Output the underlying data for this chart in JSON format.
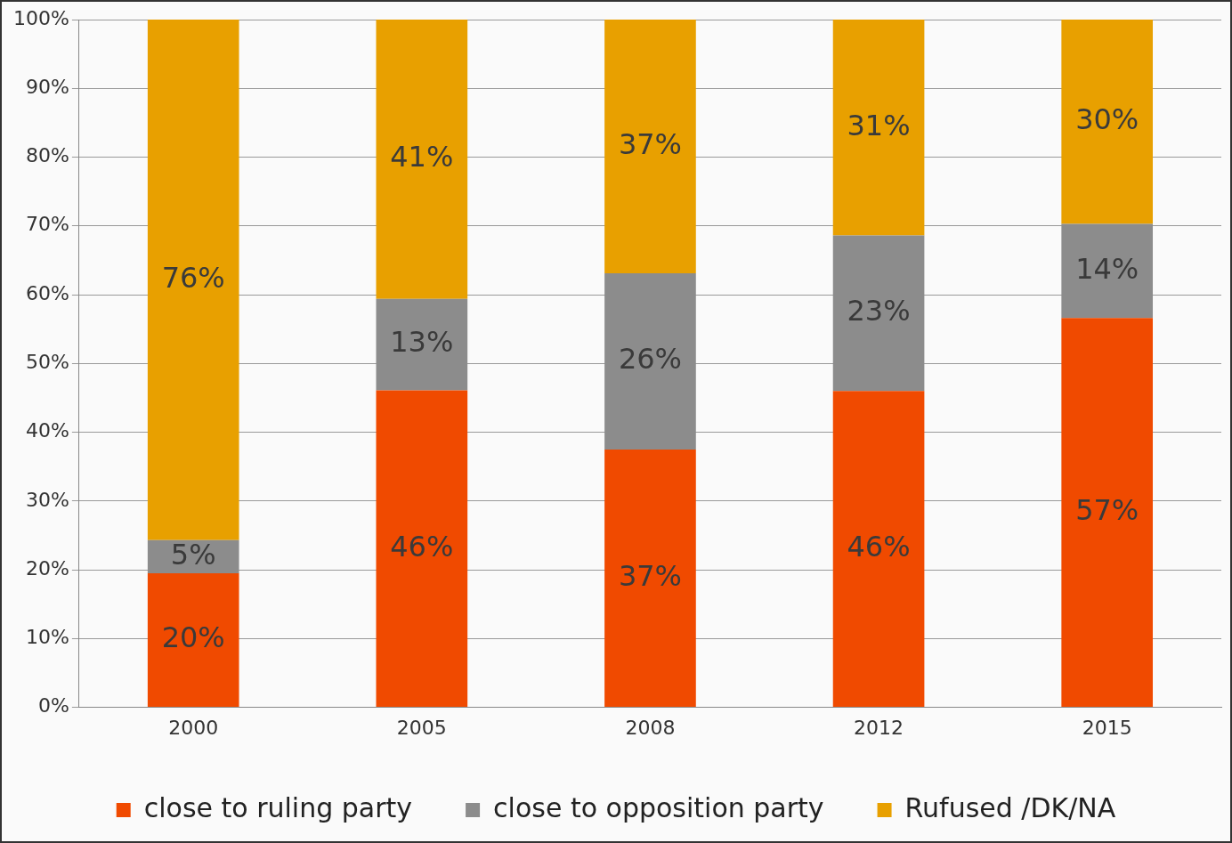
{
  "chart_data": {
    "type": "bar",
    "stacked": true,
    "categories": [
      "2000",
      "2005",
      "2008",
      "2012",
      "2015"
    ],
    "series": [
      {
        "name": "close to ruling party",
        "color": "#f04a00",
        "values": [
          19.5,
          46.1,
          37.5,
          46,
          56.6
        ],
        "value_labels": [
          "20%",
          "46%",
          "37%",
          "46%",
          "57%"
        ]
      },
      {
        "name": "close to opposition party",
        "color": "#8c8c8c",
        "values": [
          4.8,
          13.3,
          25.6,
          22.6,
          13.7
        ],
        "value_labels": [
          "5%",
          "13%",
          "26%",
          "23%",
          "14%"
        ]
      },
      {
        "name": "Rufused /DK/NA",
        "color": "#e8a000",
        "values": [
          75.7,
          40.6,
          36.9,
          31.4,
          29.7
        ],
        "value_labels": [
          "76%",
          "41%",
          "37%",
          "31%",
          "30%"
        ]
      }
    ],
    "ylim": [
      0,
      100
    ],
    "yticks": [
      {
        "value": 0,
        "label": "0%"
      },
      {
        "value": 10,
        "label": "10%"
      },
      {
        "value": 20,
        "label": "20%"
      },
      {
        "value": 30,
        "label": "30%"
      },
      {
        "value": 40,
        "label": "40%"
      },
      {
        "value": 50,
        "label": "50%"
      },
      {
        "value": 60,
        "label": "60%"
      },
      {
        "value": 70,
        "label": "70%"
      },
      {
        "value": 80,
        "label": "80%"
      },
      {
        "value": 90,
        "label": "90%"
      },
      {
        "value": 100,
        "label": "100%"
      }
    ],
    "grid": "y",
    "legend": "bottom"
  }
}
